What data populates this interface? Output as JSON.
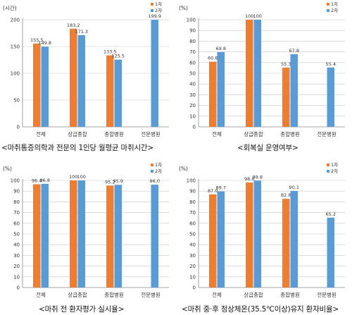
{
  "colors": {
    "s1": "#ed7d31",
    "s2": "#5b9bd5",
    "axis": "#888888",
    "grid": "#c8c8c8"
  },
  "chart_data": [
    {
      "type": "bar",
      "ylabel": "(시간)",
      "ylim": [
        0,
        200
      ],
      "yticks": [
        "0",
        "50",
        "100",
        "150",
        "200"
      ],
      "categories": [
        "전체",
        "상급종합",
        "종합병원",
        "전문병원"
      ],
      "series": [
        {
          "name": "1차",
          "values": [
            155.5,
            183.2,
            133.5,
            null
          ],
          "labels": [
            "155.5",
            "183.2",
            "133.5",
            ""
          ]
        },
        {
          "name": "2차",
          "values": [
            149.8,
            171.3,
            125.5,
            199.9
          ],
          "labels": [
            "149.8",
            "171.3",
            "125.5",
            "199.9"
          ]
        }
      ],
      "legend": "top-right",
      "caption": "<마취통증의학과 전문의 1인당 월평균 마취시간>"
    },
    {
      "type": "bar",
      "ylabel": "(%)",
      "ylim": [
        0,
        100
      ],
      "yticks": [
        "0",
        "10",
        "20",
        "30",
        "40",
        "50",
        "60",
        "70",
        "80",
        "90",
        "100"
      ],
      "categories": [
        "전체",
        "상급종합",
        "종합병원",
        "전문병원"
      ],
      "series": [
        {
          "name": "1차",
          "values": [
            60.8,
            100,
            55.3,
            null
          ],
          "labels": [
            "60.8",
            "100",
            "55.3",
            ""
          ]
        },
        {
          "name": "2차",
          "values": [
            69.8,
            100,
            67.8,
            55.4
          ],
          "labels": [
            "69.8",
            "100",
            "67.8",
            "55.4"
          ]
        }
      ],
      "legend": "top-right",
      "caption": "<회복실 운영여부>"
    },
    {
      "type": "bar",
      "ylabel": "(%)",
      "ylim": [
        0,
        100
      ],
      "yticks": [
        "0",
        "10",
        "20",
        "30",
        "40",
        "50",
        "60",
        "70",
        "80",
        "90",
        "100"
      ],
      "categories": [
        "전체",
        "상급종합",
        "종합병원",
        "전문병원"
      ],
      "series": [
        {
          "name": "1차",
          "values": [
            96.4,
            100,
            95.2,
            null
          ],
          "labels": [
            "96.4",
            "100",
            "95.2",
            ""
          ]
        },
        {
          "name": "2차",
          "values": [
            96.8,
            100,
            95.9,
            96.0
          ],
          "labels": [
            "96.8",
            "100",
            "95.9",
            "96.0"
          ]
        }
      ],
      "legend": "top-right",
      "caption": "<마취 전 환자평가 실시율>"
    },
    {
      "type": "bar",
      "ylabel": "(%)",
      "ylim": [
        0,
        100
      ],
      "yticks": [
        "0",
        "10",
        "20",
        "30",
        "40",
        "50",
        "60",
        "70",
        "80",
        "90",
        "100"
      ],
      "categories": [
        "전체",
        "상급종합",
        "종합병원",
        "전문병원"
      ],
      "series": [
        {
          "name": "1차",
          "values": [
            87.0,
            98.0,
            82.8,
            null
          ],
          "labels": [
            "87.0",
            "98.0",
            "82.8",
            ""
          ]
        },
        {
          "name": "2차",
          "values": [
            89.7,
            99.8,
            90.1,
            65.2
          ],
          "labels": [
            "89.7",
            "99.8",
            "90.1",
            "65.2"
          ]
        }
      ],
      "legend": "top-right",
      "caption": "<마취 중·후 정상체온(35.5℃이상)유지 환자비율>"
    }
  ]
}
